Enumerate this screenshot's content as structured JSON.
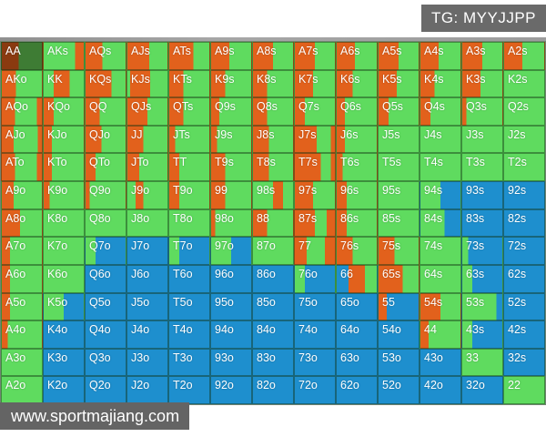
{
  "header": {
    "badge": "TG: MYYJJPP"
  },
  "footer": {
    "watermark": "www.sportmajiang.com"
  },
  "colors": {
    "o": "#E2611C",
    "g": "#5FDB5F",
    "b": "#1E8FCE",
    "dr": "#8A3A10",
    "dg": "#3E7C34",
    "badge_bg": "#6A6A6A",
    "watermark_bg": "#646464"
  },
  "legend_semantics": {
    "o": "raise",
    "g": "call",
    "b": "fold",
    "dr": "raise-selected",
    "dg": "call-selected"
  },
  "grid": {
    "rows": [
      [
        [
          "AA",
          "dr42 dg58"
        ],
        [
          "AKs",
          "g78 o22"
        ],
        [
          "AQs",
          "o42 g58"
        ],
        [
          "AJs",
          "o55 g45"
        ],
        [
          "ATs",
          "o60 g40"
        ],
        [
          "A9s",
          "o45 g55"
        ],
        [
          "A8s",
          "o50 g50"
        ],
        [
          "A7s",
          "o50 g50"
        ],
        [
          "A6s",
          "o45 g55"
        ],
        [
          "A5s",
          "o50 g50"
        ],
        [
          "A4s",
          "o45 g55"
        ],
        [
          "A3s",
          "o50 g50"
        ],
        [
          "A2s",
          "o45 g55"
        ]
      ],
      [
        [
          "AKo",
          "o35 g65"
        ],
        [
          "KK",
          "g25 o40 g35"
        ],
        [
          "KQs",
          "o65 g35"
        ],
        [
          "KJs",
          "g7 o50 g43"
        ],
        [
          "KTs",
          "o35 g65"
        ],
        [
          "K9s",
          "o35 g65"
        ],
        [
          "K8s",
          "o35 g65"
        ],
        [
          "K7s",
          "o45 g55"
        ],
        [
          "K6s",
          "o40 g60"
        ],
        [
          "K5s",
          "o45 g55"
        ],
        [
          "K4s",
          "o35 g65"
        ],
        [
          "K3s",
          "o45 g55"
        ],
        [
          "K2s",
          "g100"
        ]
      ],
      [
        [
          "AQo",
          "o33 g55 o12"
        ],
        [
          "KQo",
          "o25 g75"
        ],
        [
          "QQ",
          "o35 g65"
        ],
        [
          "QJs",
          "o50 g50"
        ],
        [
          "QTs",
          "o35 g65"
        ],
        [
          "Q9s",
          "o20 g80"
        ],
        [
          "Q8s",
          "o35 g65"
        ],
        [
          "Q7s",
          "o25 g75"
        ],
        [
          "Q6s",
          "o20 g80"
        ],
        [
          "Q5s",
          "o25 g75"
        ],
        [
          "Q4s",
          "o25 g75"
        ],
        [
          "Q3s",
          "o10 g90"
        ],
        [
          "Q2s",
          "g100"
        ]
      ],
      [
        [
          "AJo",
          "o30 g60 o10"
        ],
        [
          "KJo",
          "o20 g80"
        ],
        [
          "QJo",
          "o40 g60"
        ],
        [
          "JJ",
          "o40 g60"
        ],
        [
          "JTs",
          "o15 g85"
        ],
        [
          "J9s",
          "o15 g85"
        ],
        [
          "J8s",
          "o40 g60"
        ],
        [
          "J7s",
          "o55 g35 o10"
        ],
        [
          "J6s",
          "o20 g80"
        ],
        [
          "J5s",
          "g100"
        ],
        [
          "J4s",
          "g100"
        ],
        [
          "J3s",
          "g100"
        ],
        [
          "J2s",
          "g100"
        ]
      ],
      [
        [
          "ATo",
          "o33 g55 o12"
        ],
        [
          "KTo",
          "o20 g80"
        ],
        [
          "QTo",
          "o25 g75"
        ],
        [
          "JTo",
          "o30 g70"
        ],
        [
          "TT",
          "o25 g75"
        ],
        [
          "T9s",
          "o35 g65"
        ],
        [
          "T8s",
          "o40 g60"
        ],
        [
          "T7s",
          "o65 g25 o10"
        ],
        [
          "T6s",
          "o15 g85"
        ],
        [
          "T5s",
          "g100"
        ],
        [
          "T4s",
          "g100"
        ],
        [
          "T3s",
          "g100"
        ],
        [
          "T2s",
          "g100"
        ]
      ],
      [
        [
          "A9o",
          "o30 g70"
        ],
        [
          "K9o",
          "o15 g85"
        ],
        [
          "Q9o",
          "o10 g90"
        ],
        [
          "J9o",
          "g20 o20 g60"
        ],
        [
          "T9o",
          "o25 g75"
        ],
        [
          "99",
          "o35 g65"
        ],
        [
          "98s",
          "g50 o25 g25"
        ],
        [
          "97s",
          "o45 g55"
        ],
        [
          "96s",
          "o25 g75"
        ],
        [
          "95s",
          "g100"
        ],
        [
          "94s",
          "g50 b50"
        ],
        [
          "93s",
          "b100"
        ],
        [
          "92s",
          "b100"
        ]
      ],
      [
        [
          "A8o",
          "o45 g55"
        ],
        [
          "K8o",
          "g100"
        ],
        [
          "Q8o",
          "g100"
        ],
        [
          "J8o",
          "g100"
        ],
        [
          "T8o",
          "g100"
        ],
        [
          "98o",
          "o10 g90"
        ],
        [
          "88",
          "o35 g65"
        ],
        [
          "87s",
          "o50 g30 o20"
        ],
        [
          "86s",
          "o25 g75"
        ],
        [
          "85s",
          "g100"
        ],
        [
          "84s",
          "g60 b40"
        ],
        [
          "83s",
          "b100"
        ],
        [
          "82s",
          "b100"
        ]
      ],
      [
        [
          "A7o",
          "o20 g80"
        ],
        [
          "K7o",
          "g100"
        ],
        [
          "Q7o",
          "g25 b75"
        ],
        [
          "J7o",
          "b100"
        ],
        [
          "T7o",
          "g25 b75"
        ],
        [
          "97o",
          "g50 b50"
        ],
        [
          "87o",
          "g100"
        ],
        [
          "77",
          "o30 g45 o25"
        ],
        [
          "76s",
          "o40 g60"
        ],
        [
          "75s",
          "o40 g60"
        ],
        [
          "74s",
          "g100"
        ],
        [
          "73s",
          "g15 b85"
        ],
        [
          "72s",
          "b100"
        ]
      ],
      [
        [
          "A6o",
          "o20 g80"
        ],
        [
          "K6o",
          "g100"
        ],
        [
          "Q6o",
          "b100"
        ],
        [
          "J6o",
          "b100"
        ],
        [
          "T6o",
          "b100"
        ],
        [
          "96o",
          "b100"
        ],
        [
          "86o",
          "b100"
        ],
        [
          "76o",
          "g25 b75"
        ],
        [
          "66",
          "b30 o40 g30"
        ],
        [
          "65s",
          "o60 g40"
        ],
        [
          "64s",
          "g100"
        ],
        [
          "63s",
          "g25 b75"
        ],
        [
          "62s",
          "b100"
        ]
      ],
      [
        [
          "A5o",
          "o20 g80"
        ],
        [
          "K5o",
          "g50 b50"
        ],
        [
          "Q5o",
          "b100"
        ],
        [
          "J5o",
          "b100"
        ],
        [
          "T5o",
          "b100"
        ],
        [
          "95o",
          "b100"
        ],
        [
          "85o",
          "b100"
        ],
        [
          "75o",
          "b100"
        ],
        [
          "65o",
          "b100"
        ],
        [
          "55",
          "o20 b80"
        ],
        [
          "54s",
          "o50 g50"
        ],
        [
          "53s",
          "g85 b15"
        ],
        [
          "52s",
          "b100"
        ]
      ],
      [
        [
          "A4o",
          "o15 g85"
        ],
        [
          "K4o",
          "b100"
        ],
        [
          "Q4o",
          "b100"
        ],
        [
          "J4o",
          "b100"
        ],
        [
          "T4o",
          "b100"
        ],
        [
          "94o",
          "b100"
        ],
        [
          "84o",
          "b100"
        ],
        [
          "74o",
          "b100"
        ],
        [
          "64o",
          "b100"
        ],
        [
          "54o",
          "b100"
        ],
        [
          "44",
          "o20 g80"
        ],
        [
          "43s",
          "g25 b75"
        ],
        [
          "42s",
          "b100"
        ]
      ],
      [
        [
          "A3o",
          "g100"
        ],
        [
          "K3o",
          "b100"
        ],
        [
          "Q3o",
          "b100"
        ],
        [
          "J3o",
          "b100"
        ],
        [
          "T3o",
          "b100"
        ],
        [
          "93o",
          "b100"
        ],
        [
          "83o",
          "b100"
        ],
        [
          "73o",
          "b100"
        ],
        [
          "63o",
          "b100"
        ],
        [
          "53o",
          "b100"
        ],
        [
          "43o",
          "b100"
        ],
        [
          "33",
          "g100"
        ],
        [
          "32s",
          "b100"
        ]
      ],
      [
        [
          "A2o",
          "g100"
        ],
        [
          "K2o",
          "b100"
        ],
        [
          "Q2o",
          "b100"
        ],
        [
          "J2o",
          "b100"
        ],
        [
          "T2o",
          "b100"
        ],
        [
          "92o",
          "b100"
        ],
        [
          "82o",
          "b100"
        ],
        [
          "72o",
          "b100"
        ],
        [
          "62o",
          "b100"
        ],
        [
          "52o",
          "b100"
        ],
        [
          "42o",
          "b100"
        ],
        [
          "32o",
          "b100"
        ],
        [
          "22",
          "g100"
        ]
      ]
    ]
  }
}
